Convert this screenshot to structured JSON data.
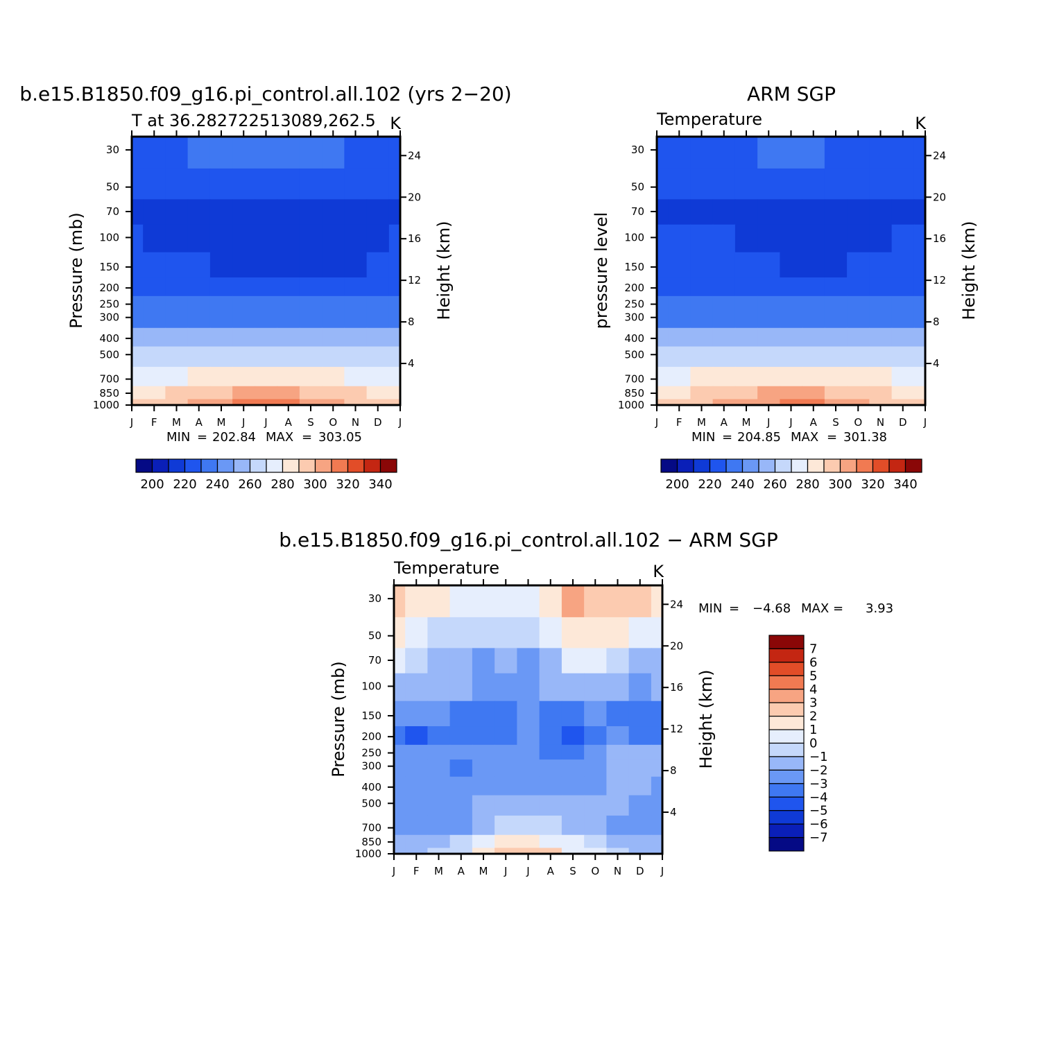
{
  "colors": {
    "abs_scale": [
      "#050a85",
      "#0a1fb8",
      "#0f3ad6",
      "#1f55ee",
      "#3f78f2",
      "#6a98f5",
      "#98b7f8",
      "#c5d8fb",
      "#e6eefd",
      "#fde8d8",
      "#fccbb0",
      "#f7a482",
      "#f17a52",
      "#e24d28",
      "#c42612",
      "#8a0707"
    ],
    "diff_scale": [
      "#050a85",
      "#0a1fb8",
      "#0f3ad6",
      "#1f55ee",
      "#3f78f2",
      "#6a98f5",
      "#98b7f8",
      "#c5d8fb",
      "#e6eefd",
      "#fde8d8",
      "#fccbb0",
      "#f7a482",
      "#f17a52",
      "#e24d28",
      "#c42612",
      "#8a0707"
    ]
  },
  "panels": {
    "model": {
      "title": "b.e15.B1850.f09_g16.pi_control.all.102 (yrs 2−20)",
      "left_string": "T at 36.282722513089,262.5",
      "right_string": "K",
      "ylabel": "Pressure (mb)",
      "ylabel_right": "Height (km)",
      "min_label": "MIN",
      "min_value": "202.84",
      "max_label": "MAX",
      "max_value": "303.05",
      "colorbar_labels": [
        "200",
        "220",
        "240",
        "260",
        "280",
        "300",
        "320",
        "340"
      ]
    },
    "obs": {
      "title": "ARM SGP",
      "left_string": "Temperature",
      "right_string": "K",
      "ylabel": "pressure level",
      "ylabel_right": "Height (km)",
      "min_label": "MIN",
      "min_value": "204.85",
      "max_label": "MAX",
      "max_value": "301.38",
      "colorbar_labels": [
        "200",
        "220",
        "240",
        "260",
        "280",
        "300",
        "320",
        "340"
      ]
    },
    "diff": {
      "title": "b.e15.B1850.f09_g16.pi_control.all.102 − ARM SGP",
      "left_string": "Temperature",
      "right_string": "K",
      "ylabel": "Pressure (mb)",
      "ylabel_right": "Height (km)",
      "min_label": "MIN",
      "min_value": "−4.68",
      "max_label": "MAX",
      "max_value": "3.93",
      "colorbar_labels": [
        "7",
        "6",
        "5",
        "4",
        "3",
        "2",
        "1",
        "0",
        "−1",
        "−2",
        "−3",
        "−4",
        "−5",
        "−6",
        "−7"
      ]
    }
  },
  "axes": {
    "months": [
      "J",
      "F",
      "M",
      "A",
      "M",
      "J",
      "J",
      "A",
      "S",
      "O",
      "N",
      "D",
      "J"
    ],
    "pressure_ticks": [
      "30",
      "50",
      "70",
      "100",
      "150",
      "200",
      "250",
      "300",
      "400",
      "500",
      "700",
      "850",
      "1000"
    ],
    "height_ticks": [
      "24",
      "20",
      "16",
      "12",
      "8",
      "4"
    ]
  },
  "chart_data": [
    {
      "type": "heatmap",
      "title": "b.e15.B1850.f09_g16.pi_control.all.102 (yrs 2−20)",
      "subtitle": "T at 36.282722513089,262.5",
      "units": "K",
      "xlabel": "",
      "ylabel": "Pressure (mb)",
      "ylabel_right": "Height (km)",
      "x": [
        "J",
        "F",
        "M",
        "A",
        "M",
        "J",
        "J",
        "A",
        "S",
        "O",
        "N",
        "D",
        "J"
      ],
      "y": [
        30,
        50,
        70,
        100,
        150,
        200,
        250,
        300,
        400,
        500,
        700,
        850,
        1000
      ],
      "y_scale": "log",
      "contour_levels": [
        190,
        200,
        210,
        220,
        230,
        240,
        250,
        260,
        270,
        280,
        290,
        300,
        310,
        320,
        330,
        340
      ],
      "min": 202.84,
      "max": 303.05,
      "values": [
        [
          218,
          219,
          219,
          220,
          221,
          223,
          224,
          223,
          221,
          220,
          219,
          218,
          218
        ],
        [
          212,
          212,
          211,
          210,
          210,
          211,
          212,
          212,
          211,
          211,
          212,
          212,
          212
        ],
        [
          208,
          208,
          207,
          207,
          206,
          206,
          206,
          206,
          206,
          206,
          206,
          207,
          208
        ],
        [
          210,
          209,
          208,
          208,
          205,
          205,
          205,
          205,
          205,
          205,
          205,
          207,
          210
        ],
        [
          214,
          214,
          212,
          211,
          207,
          207,
          207,
          207,
          207,
          206,
          206,
          210,
          214
        ],
        [
          218,
          218,
          217,
          215,
          212,
          212,
          212,
          212,
          212,
          211,
          212,
          215,
          218
        ],
        [
          224,
          224,
          224,
          223,
          222,
          221,
          220,
          221,
          222,
          223,
          224,
          224,
          224
        ],
        [
          228,
          228,
          228,
          228,
          227,
          226,
          226,
          226,
          227,
          228,
          228,
          228,
          228
        ],
        [
          240,
          240,
          240,
          240,
          240,
          240,
          240,
          240,
          240,
          240,
          240,
          240,
          240
        ],
        [
          251,
          251,
          252,
          253,
          254,
          255,
          256,
          255,
          254,
          253,
          252,
          251,
          251
        ],
        [
          266,
          267,
          268,
          270,
          272,
          274,
          275,
          274,
          272,
          270,
          268,
          267,
          266
        ],
        [
          275,
          277,
          280,
          284,
          288,
          291,
          293,
          292,
          289,
          285,
          281,
          278,
          275
        ],
        [
          280,
          282,
          286,
          291,
          296,
          300,
          303,
          301,
          297,
          292,
          287,
          283,
          280
        ]
      ]
    },
    {
      "type": "heatmap",
      "title": "ARM SGP",
      "subtitle": "Temperature",
      "units": "K",
      "xlabel": "",
      "ylabel": "pressure level",
      "ylabel_right": "Height (km)",
      "x": [
        "J",
        "F",
        "M",
        "A",
        "M",
        "J",
        "J",
        "A",
        "S",
        "O",
        "N",
        "D",
        "J"
      ],
      "y": [
        30,
        50,
        70,
        100,
        150,
        200,
        250,
        300,
        400,
        500,
        700,
        850,
        1000
      ],
      "y_scale": "log",
      "contour_levels": [
        190,
        200,
        210,
        220,
        230,
        240,
        250,
        260,
        270,
        280,
        290,
        300,
        310,
        320,
        330,
        340
      ],
      "min": 204.85,
      "max": 301.38,
      "values": [
        [
          217,
          217,
          217,
          218,
          219,
          221,
          222,
          221,
          219,
          218,
          217,
          217,
          217
        ],
        [
          210,
          210,
          211,
          212,
          212,
          212,
          212,
          212,
          212,
          212,
          212,
          211,
          210
        ],
        [
          208,
          207,
          205,
          206,
          206,
          206,
          206,
          206,
          206,
          206,
          206,
          207,
          208
        ],
        [
          212,
          211,
          210,
          210,
          209,
          207,
          206,
          206,
          206,
          207,
          208,
          210,
          212
        ],
        [
          215,
          215,
          214,
          214,
          212,
          210,
          209,
          209,
          209,
          210,
          211,
          213,
          215
        ],
        [
          218,
          218,
          218,
          218,
          217,
          216,
          215,
          215,
          215,
          216,
          217,
          218,
          218
        ],
        [
          223,
          223,
          223,
          223,
          222,
          221,
          221,
          221,
          222,
          222,
          223,
          223,
          223
        ],
        [
          228,
          228,
          228,
          228,
          227,
          226,
          225,
          226,
          227,
          228,
          228,
          228,
          228
        ],
        [
          240,
          240,
          240,
          240,
          240,
          240,
          240,
          240,
          240,
          240,
          240,
          240,
          240
        ],
        [
          252,
          252,
          253,
          254,
          255,
          256,
          257,
          256,
          255,
          254,
          253,
          252,
          252
        ],
        [
          268,
          269,
          270,
          271,
          273,
          275,
          276,
          275,
          273,
          271,
          270,
          269,
          268
        ],
        [
          276,
          278,
          281,
          284,
          287,
          290,
          292,
          291,
          288,
          285,
          281,
          278,
          276
        ],
        [
          281,
          283,
          287,
          291,
          295,
          299,
          301,
          300,
          296,
          292,
          287,
          283,
          281
        ]
      ]
    },
    {
      "type": "heatmap",
      "title": "b.e15.B1850.f09_g16.pi_control.all.102 − ARM SGP",
      "subtitle": "Temperature",
      "units": "K",
      "xlabel": "",
      "ylabel": "Pressure (mb)",
      "ylabel_right": "Height (km)",
      "x": [
        "J",
        "F",
        "M",
        "A",
        "M",
        "J",
        "J",
        "A",
        "S",
        "O",
        "N",
        "D",
        "J"
      ],
      "y": [
        30,
        50,
        70,
        100,
        150,
        200,
        250,
        300,
        400,
        500,
        700,
        850,
        1000
      ],
      "y_scale": "log",
      "contour_levels": [
        -7,
        -6,
        -5,
        -4,
        -3,
        -2,
        -1,
        0,
        1,
        2,
        3,
        4,
        5,
        6,
        7
      ],
      "min": -4.68,
      "max": 3.93,
      "values": [
        [
          2.5,
          1.8,
          1.5,
          0.5,
          0.3,
          0.2,
          0.4,
          1.5,
          3.2,
          2.5,
          2.5,
          2.0,
          1.5
        ],
        [
          1.0,
          0.5,
          -0.5,
          -1.0,
          -1.0,
          -0.8,
          -0.5,
          0.2,
          1.2,
          1.5,
          1.0,
          0.5,
          0.5
        ],
        [
          0.5,
          -0.5,
          -1.5,
          -1.5,
          -2.2,
          -1.5,
          -2.5,
          -1.5,
          0.5,
          0.5,
          -0.5,
          -1.5,
          -1.2
        ],
        [
          -1.5,
          -1.5,
          -1.5,
          -2.0,
          -2.5,
          -2.5,
          -2.5,
          -2.0,
          -1.5,
          -1.5,
          -2.0,
          -2.5,
          -2.0
        ],
        [
          -2.5,
          -3.0,
          -3.0,
          -3.2,
          -3.5,
          -3.5,
          -3.0,
          -3.2,
          -3.5,
          -3.0,
          -3.2,
          -3.8,
          -3.5
        ],
        [
          -3.5,
          -4.2,
          -3.5,
          -3.8,
          -3.5,
          -3.5,
          -3.0,
          -3.8,
          -4.5,
          -3.5,
          -3.0,
          -3.5,
          -4.0
        ],
        [
          -3.0,
          -2.5,
          -2.2,
          -3.0,
          -2.5,
          -2.5,
          -2.5,
          -3.2,
          -3.5,
          -3.0,
          -1.5,
          -1.5,
          -2.0
        ],
        [
          -2.5,
          -2.5,
          -2.5,
          -3.2,
          -2.8,
          -2.5,
          -2.5,
          -2.8,
          -2.5,
          -2.2,
          -1.5,
          -1.5,
          -2.0
        ],
        [
          -2.5,
          -2.5,
          -2.5,
          -3.0,
          -2.5,
          -2.5,
          -2.5,
          -2.5,
          -2.5,
          -2.5,
          -1.8,
          -1.5,
          -2.5
        ],
        [
          -2.5,
          -2.5,
          -2.5,
          -2.2,
          -2.0,
          -1.5,
          -1.5,
          -1.5,
          -1.5,
          -1.8,
          -2.0,
          -2.2,
          -3.0
        ],
        [
          -3.0,
          -2.5,
          -2.5,
          -2.2,
          -1.5,
          -0.8,
          -0.5,
          -0.8,
          -1.2,
          -1.8,
          -2.2,
          -2.5,
          -3.0
        ],
        [
          -2.0,
          -2.0,
          -1.8,
          -1.0,
          0.3,
          1.0,
          1.2,
          0.8,
          0.0,
          -0.8,
          -1.5,
          -2.0,
          -2.0
        ],
        [
          -1.5,
          -1.5,
          -1.0,
          -0.2,
          1.0,
          2.0,
          2.5,
          2.0,
          0.5,
          0.0,
          -0.5,
          -1.2,
          -1.5
        ]
      ]
    }
  ]
}
